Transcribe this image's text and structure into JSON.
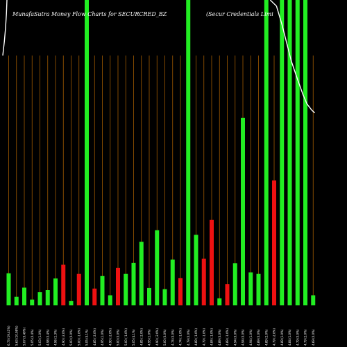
{
  "chart_data": {
    "type": "bar",
    "title_left": "MunafaSutra  Money Flow  Charts for SECURCRED_BZ",
    "title_right": "(Secur Credentials Limi",
    "ylim": [
      0,
      100
    ],
    "colors": {
      "background": "#000000",
      "up": "#22ee22",
      "down": "#ee1111",
      "grid": "#a05a00",
      "line": "#ffffff"
    },
    "bars": [
      {
        "label": "6.73 (19.41%)",
        "value": 10.5,
        "color": "up"
      },
      {
        "label": "5.63 (10.98%)",
        "value": 2.8,
        "color": "up"
      },
      {
        "label": "5.07 (0.49%)",
        "value": 5.8,
        "color": "up"
      },
      {
        "label": "5.05 (0.4%)",
        "value": 1.9,
        "color": "up"
      },
      {
        "label": "5.03 (1.0%)",
        "value": 4.3,
        "color": "up"
      },
      {
        "label": "4.98 (0.4%)",
        "value": 5.0,
        "color": "up"
      },
      {
        "label": "4.96 (1.3%)",
        "value": 8.8,
        "color": "up"
      },
      {
        "label": "4.90 (-2.0%)",
        "value": 13.3,
        "color": "down"
      },
      {
        "label": "5.00 (0.0%)",
        "value": 1.4,
        "color": "up"
      },
      {
        "label": "5.00 (-1.0%)",
        "value": 10.3,
        "color": "down"
      },
      {
        "label": "5.05 (4.1%)",
        "value": 100,
        "color": "up"
      },
      {
        "label": "4.85 (-2.0%)",
        "value": 5.5,
        "color": "down"
      },
      {
        "label": "4.95 (1.0%)",
        "value": 9.6,
        "color": "up"
      },
      {
        "label": "4.90 (-2.0%)",
        "value": 3.3,
        "color": "up"
      },
      {
        "label": "5.00 (0.0%)",
        "value": 12.3,
        "color": "down"
      },
      {
        "label": "5.00 (-1.0%)",
        "value": 10.3,
        "color": "up"
      },
      {
        "label": "5.05 (4.1%)",
        "value": 13.9,
        "color": "up"
      },
      {
        "label": "4.85 (-2.0%)",
        "value": 20.8,
        "color": "up"
      },
      {
        "label": "4.95 (1.0%)",
        "value": 5.7,
        "color": "up"
      },
      {
        "label": "4.90 (-2.0%)",
        "value": 24.6,
        "color": "up"
      },
      {
        "label": "5.00 (0.0%)",
        "value": 5.3,
        "color": "up"
      },
      {
        "label": "4.74 (0.0%)",
        "value": 15.0,
        "color": "up"
      },
      {
        "label": "4.74 (-1.0%)",
        "value": 8.9,
        "color": "down"
      },
      {
        "label": "4.79 (0.0%)",
        "value": 100,
        "color": "up"
      },
      {
        "label": "4.89 (-1.0%)",
        "value": 23.1,
        "color": "up"
      },
      {
        "label": "4.79 (-1.0%)",
        "value": 15.3,
        "color": "down"
      },
      {
        "label": "4.84 (-1.0%)",
        "value": 28.0,
        "color": "down"
      },
      {
        "label": "4.89 (0.0%)",
        "value": 2.3,
        "color": "up"
      },
      {
        "label": "4.89 (-1.0%)",
        "value": 7.0,
        "color": "down"
      },
      {
        "label": "4.94 (0.0%)",
        "value": 13.8,
        "color": "up"
      },
      {
        "label": "4.94 (0.0%)",
        "value": 61.4,
        "color": "up"
      },
      {
        "label": "4.94 (1.0%)",
        "value": 10.8,
        "color": "up"
      },
      {
        "label": "4.89 (0.0%)",
        "value": 10.3,
        "color": "up"
      },
      {
        "label": "4.89 (2.0%)",
        "value": 100,
        "color": "up"
      },
      {
        "label": "4.79 (-2.0%)",
        "value": 40.9,
        "color": "down"
      },
      {
        "label": "4.89 (1.0%)",
        "value": 100,
        "color": "up"
      },
      {
        "label": "4.84 (1.0%)",
        "value": 100,
        "color": "up"
      },
      {
        "label": "4.79 (0.0%)",
        "value": 100,
        "color": "up"
      },
      {
        "label": "4.79 (2.0%)",
        "value": 100,
        "color": "up"
      },
      {
        "label": "4.69 (0.0%)",
        "value": 3.3,
        "color": "up"
      }
    ],
    "price_line": [
      [
        33.5,
        100
      ],
      [
        34.3,
        98
      ],
      [
        35.0,
        92
      ],
      [
        35.6,
        86
      ],
      [
        36.2,
        80
      ],
      [
        37.0,
        74
      ],
      [
        37.7,
        69
      ],
      [
        38.2,
        66
      ],
      [
        38.8,
        64
      ],
      [
        39.2,
        63
      ]
    ]
  }
}
